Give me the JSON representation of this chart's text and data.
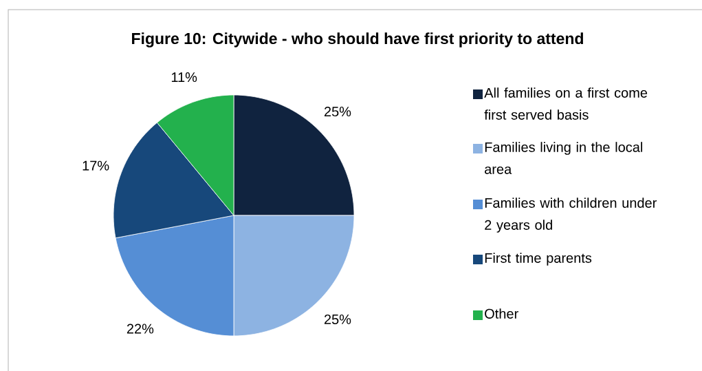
{
  "chart_data": {
    "type": "pie",
    "title": "Figure 10: Citywide - who should have first priority to attend",
    "categories": [
      "All families on a first come first served basis",
      "Families living in the local area",
      "Families with children under 2 years old",
      "First time parents",
      "Other"
    ],
    "values": [
      25,
      25,
      22,
      17,
      11
    ],
    "value_labels": [
      "25%",
      "25%",
      "22%",
      "17%",
      "11%"
    ],
    "colors": [
      "#10233f",
      "#8db3e2",
      "#558ed5",
      "#17487b",
      "#23b14d"
    ],
    "legend": "right"
  }
}
